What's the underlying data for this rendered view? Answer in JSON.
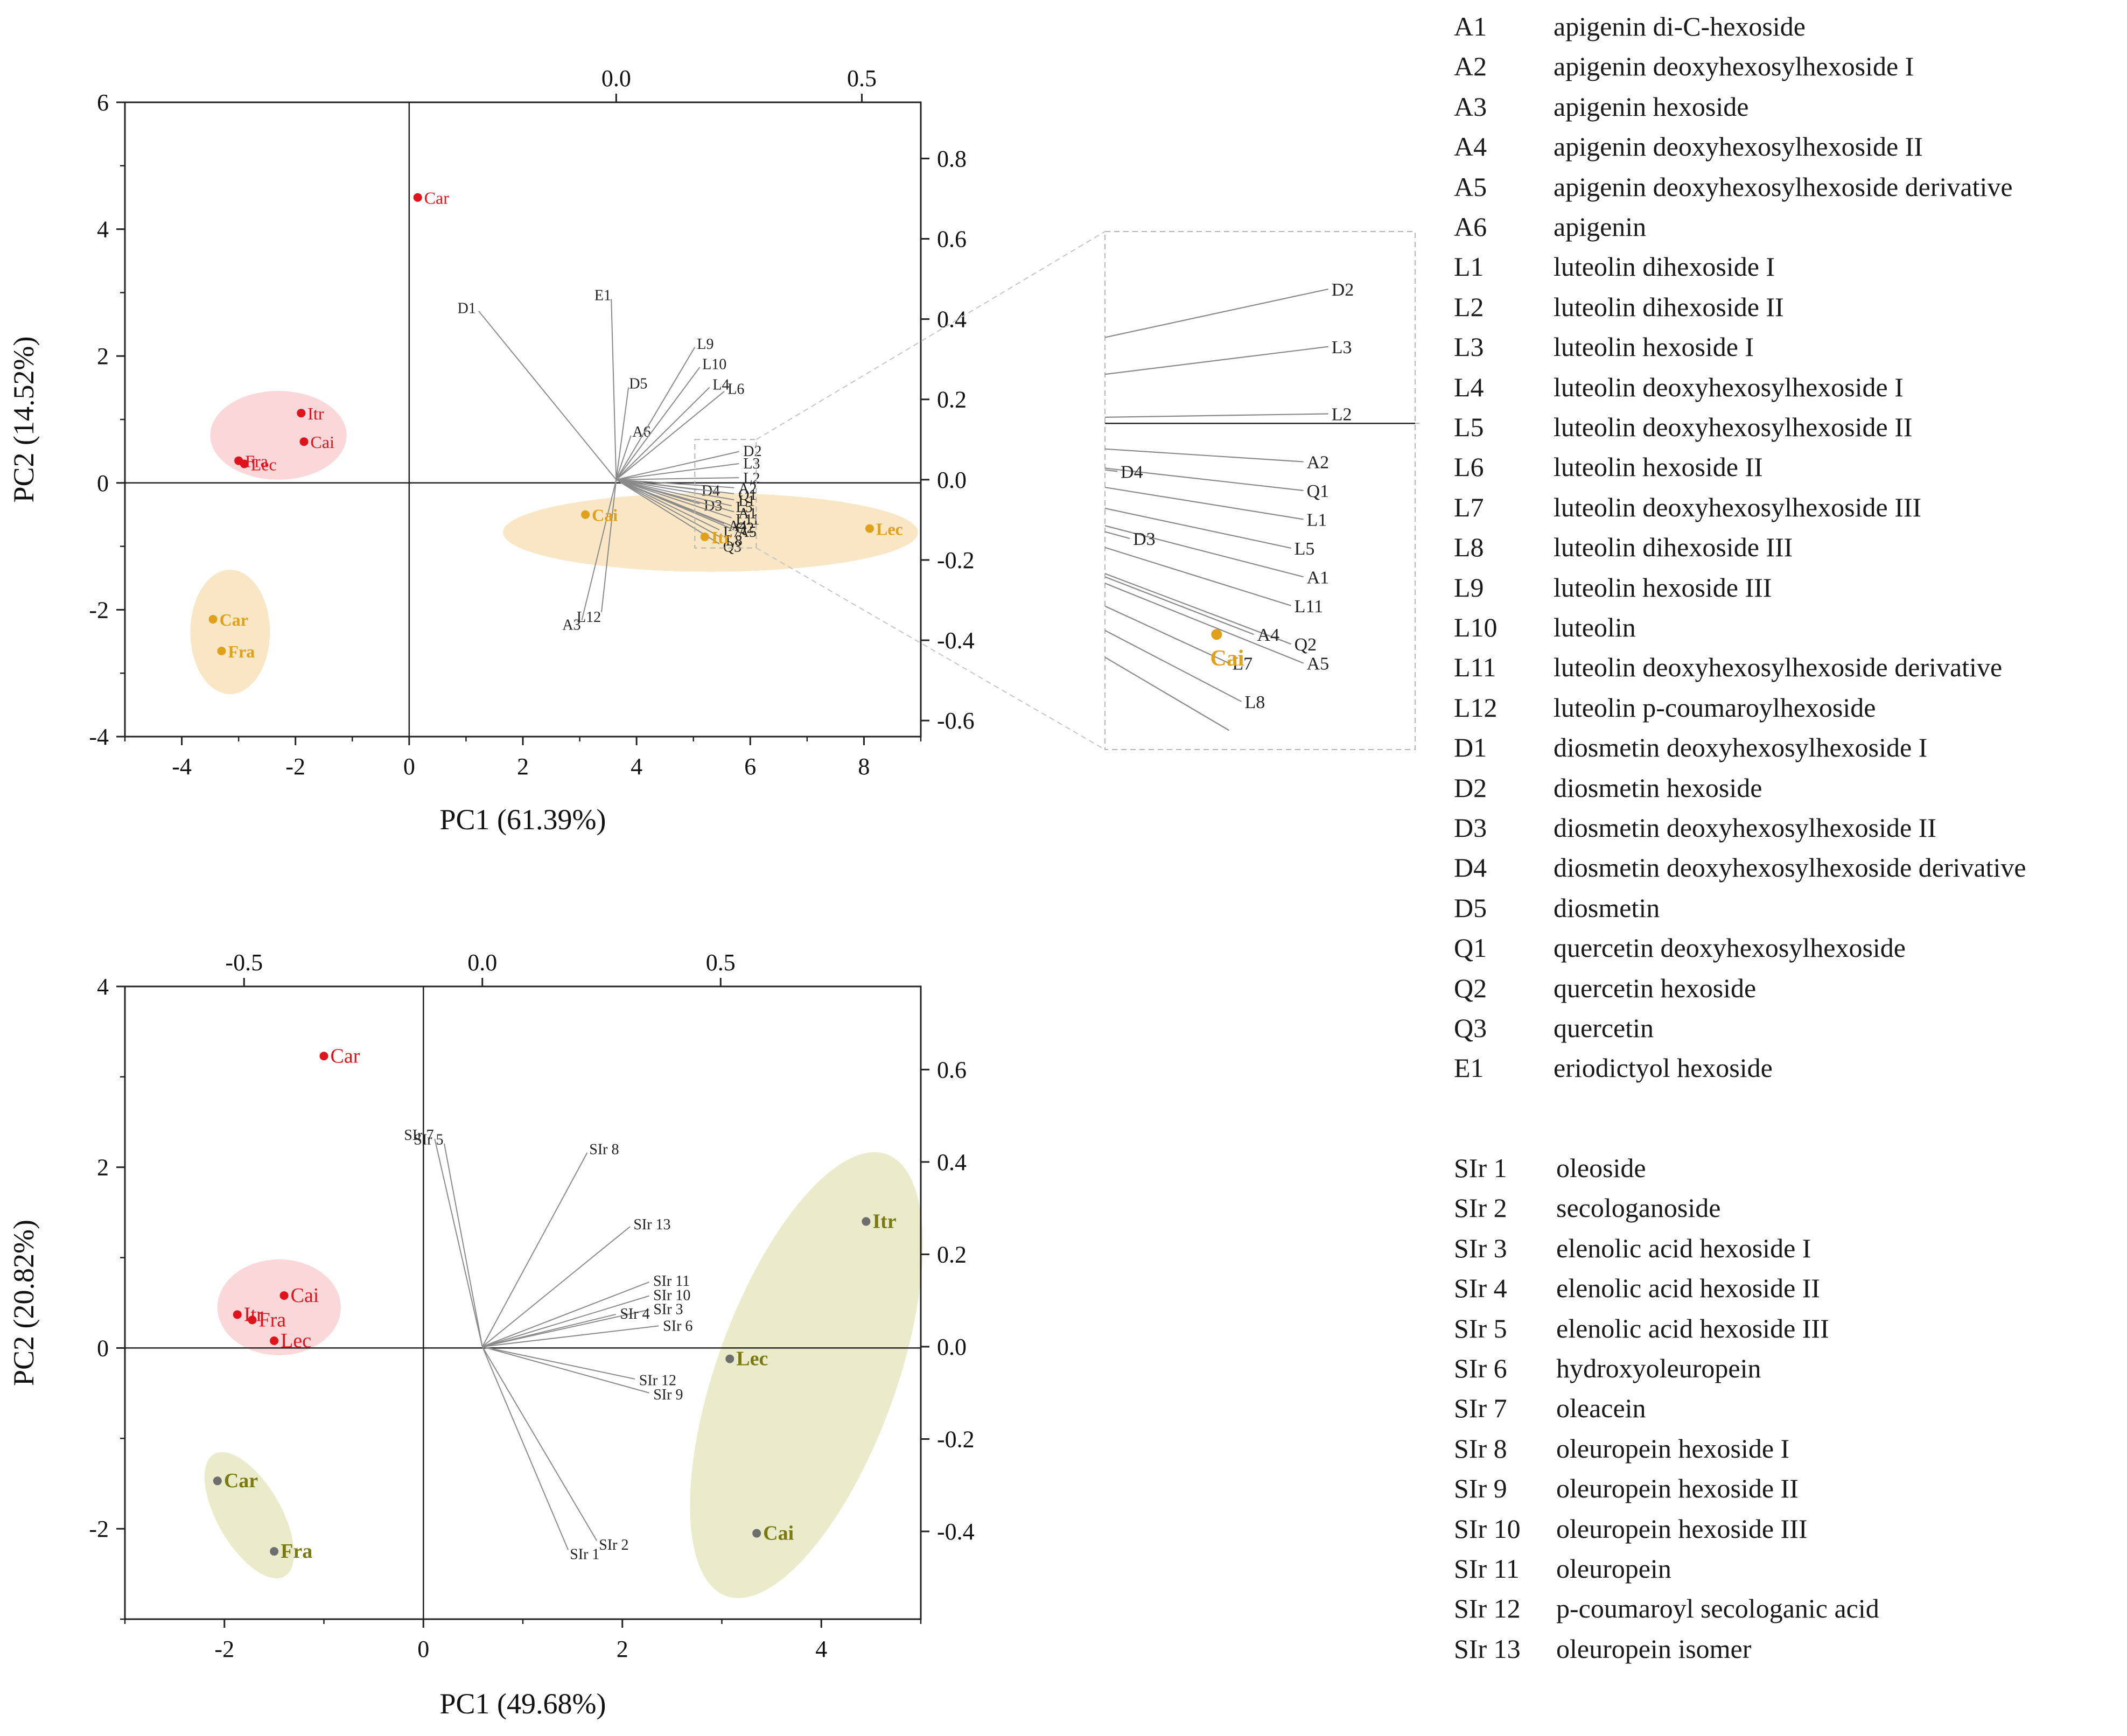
{
  "colors": {
    "red": "#e0121b",
    "orange": "#e0a01a",
    "olive": "#7a7a10",
    "gray_dot": "#6e6e6e",
    "red_ellipse": "#f8c9cc",
    "orange_ellipse": "#f7deb0",
    "olive_ellipse": "#e3e4b8",
    "loading_line": "#8a8a8a",
    "axis": "#222222"
  },
  "chart_data": [
    {
      "type": "scatter",
      "subtype": "biplot",
      "title": "",
      "xlabel": "PC1 (61.39%)",
      "ylabel": "PC2 (14.52%)",
      "xlim": [
        -5,
        9
      ],
      "ylim": [
        -4,
        6
      ],
      "x_ticks": [
        "-4",
        "-2",
        "0",
        "2",
        "4",
        "6",
        "8"
      ],
      "x_tick_values": [
        -4,
        -2,
        0,
        2,
        4,
        6,
        8
      ],
      "y_ticks": [
        "-4",
        "-2",
        "0",
        "2",
        "4",
        "6"
      ],
      "y_tick_values": [
        -4,
        -2,
        0,
        2,
        4,
        6
      ],
      "top_axis": {
        "lim": [
          -1,
          0.62
        ],
        "ticks": [
          "0.0",
          "0.5"
        ],
        "tick_values": [
          0,
          0.5
        ]
      },
      "right_axis": {
        "lim": [
          -0.64,
          0.94
        ],
        "ticks": [
          "0.8",
          "0.6",
          "0.4",
          "0.2",
          "0.0",
          "-0.2",
          "-0.4",
          "-0.6"
        ],
        "tick_values": [
          0.8,
          0.6,
          0.4,
          0.2,
          0,
          -0.2,
          -0.4,
          -0.6
        ]
      },
      "score_groups": [
        {
          "name": "red",
          "color": "red",
          "points": [
            {
              "label": "Car",
              "x": 0.15,
              "y": 4.5
            },
            {
              "label": "Itr",
              "x": -1.9,
              "y": 1.1
            },
            {
              "label": "Cai",
              "x": -1.85,
              "y": 0.65
            },
            {
              "label": "Fra",
              "x": -3.0,
              "y": 0.35
            },
            {
              "label": "Lec",
              "x": -2.9,
              "y": 0.3
            }
          ],
          "ellipses": [
            {
              "cx": -2.3,
              "cy": 0.75,
              "rx": 1.2,
              "ry": 0.7,
              "angle": 0
            }
          ]
        },
        {
          "name": "orange",
          "color": "orange",
          "points": [
            {
              "label": "Car",
              "x": -3.45,
              "y": -2.15
            },
            {
              "label": "Fra",
              "x": -3.3,
              "y": -2.65
            },
            {
              "label": "Cai",
              "x": 3.1,
              "y": -0.5
            },
            {
              "label": "Itr",
              "x": 5.2,
              "y": -0.85
            },
            {
              "label": "Lec",
              "x": 8.1,
              "y": -0.72
            }
          ],
          "ellipses": [
            {
              "cx": -3.15,
              "cy": -2.35,
              "rx": 0.7,
              "ry": 0.98,
              "angle": 0
            },
            {
              "cx": 5.3,
              "cy": -0.78,
              "rx": 3.65,
              "ry": 0.62,
              "angle": 0
            }
          ]
        }
      ],
      "loadings": [
        {
          "label": "D1",
          "x": -0.28,
          "y": 0.42
        },
        {
          "label": "E1",
          "x": -0.01,
          "y": 0.45
        },
        {
          "label": "D5",
          "x": 0.025,
          "y": 0.23
        },
        {
          "label": "A6",
          "x": 0.03,
          "y": 0.11
        },
        {
          "label": "L9",
          "x": 0.16,
          "y": 0.33
        },
        {
          "label": "L10",
          "x": 0.17,
          "y": 0.28
        },
        {
          "label": "L4",
          "x": 0.19,
          "y": 0.23
        },
        {
          "label": "L6",
          "x": 0.22,
          "y": 0.22
        },
        {
          "label": "D2",
          "x": 0.25,
          "y": 0.07
        },
        {
          "label": "L3",
          "x": 0.25,
          "y": 0.04
        },
        {
          "label": "L2",
          "x": 0.25,
          "y": 0.005
        },
        {
          "label": "A2",
          "x": 0.24,
          "y": -0.02
        },
        {
          "label": "D4",
          "x": 0.165,
          "y": -0.025
        },
        {
          "label": "D3",
          "x": 0.17,
          "y": -0.06
        },
        {
          "label": "Q1",
          "x": 0.24,
          "y": -0.035
        },
        {
          "label": "L1",
          "x": 0.24,
          "y": -0.05
        },
        {
          "label": "L5",
          "x": 0.235,
          "y": -0.065
        },
        {
          "label": "A1",
          "x": 0.24,
          "y": -0.08
        },
        {
          "label": "L11",
          "x": 0.235,
          "y": -0.095
        },
        {
          "label": "A4",
          "x": 0.22,
          "y": -0.11
        },
        {
          "label": "Q2",
          "x": 0.235,
          "y": -0.115
        },
        {
          "label": "A5",
          "x": 0.24,
          "y": -0.125
        },
        {
          "label": "L7",
          "x": 0.21,
          "y": -0.125
        },
        {
          "label": "L8",
          "x": 0.215,
          "y": -0.145
        },
        {
          "label": "Q3",
          "x": 0.21,
          "y": -0.16
        },
        {
          "label": "A3",
          "x": -0.07,
          "y": -0.35
        },
        {
          "label": "L12",
          "x": -0.03,
          "y": -0.33
        }
      ],
      "inset": {
        "xlim": [
          0.16,
          0.285
        ],
        "ylim": [
          -0.17,
          0.1
        ],
        "visible_loadings": [
          "D2",
          "L3",
          "L2",
          "A2",
          "D4",
          "D3",
          "Q1",
          "L1",
          "L5",
          "A1",
          "L11",
          "A4",
          "Q2",
          "A5",
          "L7",
          "L8"
        ],
        "visible_points": [
          {
            "label": "Cai",
            "x": 0.205,
            "y": -0.11,
            "color": "orange"
          }
        ]
      }
    },
    {
      "type": "scatter",
      "subtype": "biplot",
      "title": "",
      "xlabel": "PC1 (49.68%)",
      "ylabel": "PC2 (20.82%)",
      "xlim": [
        -3,
        5
      ],
      "ylim": [
        -3,
        4
      ],
      "x_ticks": [
        "-2",
        "0",
        "2",
        "4"
      ],
      "x_tick_values": [
        -2,
        0,
        2,
        4
      ],
      "y_ticks": [
        "-2",
        "0",
        "2",
        "4"
      ],
      "y_tick_values": [
        -2,
        0,
        2,
        4
      ],
      "top_axis": {
        "lim": [
          -0.75,
          0.92
        ],
        "ticks": [
          "-0.5",
          "0.0",
          "0.5"
        ],
        "tick_values": [
          -0.5,
          0,
          0.5
        ]
      },
      "right_axis": {
        "lim": [
          -0.59,
          0.78
        ],
        "ticks": [
          "0.6",
          "0.4",
          "0.2",
          "0.0",
          "-0.2",
          "-0.4"
        ],
        "tick_values": [
          0.6,
          0.4,
          0.2,
          0,
          -0.2,
          -0.4
        ]
      },
      "score_groups": [
        {
          "name": "red",
          "color": "red",
          "points": [
            {
              "label": "Car",
              "x": -1.0,
              "y": 3.23
            },
            {
              "label": "Itr",
              "x": -1.87,
              "y": 0.37
            },
            {
              "label": "Cai",
              "x": -1.4,
              "y": 0.58
            },
            {
              "label": "Fra",
              "x": -1.72,
              "y": 0.31
            },
            {
              "label": "Lec",
              "x": -1.5,
              "y": 0.08
            }
          ],
          "ellipses": [
            {
              "cx": -1.45,
              "cy": 0.45,
              "rx": 0.62,
              "ry": 0.53,
              "angle": 0
            }
          ]
        },
        {
          "name": "olive",
          "color": "olive",
          "points": [
            {
              "label": "Car",
              "x": -2.07,
              "y": -1.47
            },
            {
              "label": "Fra",
              "x": -1.5,
              "y": -2.25
            },
            {
              "label": "Itr",
              "x": 4.45,
              "y": 1.4
            },
            {
              "label": "Lec",
              "x": 3.08,
              "y": -0.12
            },
            {
              "label": "Cai",
              "x": 3.35,
              "y": -2.05
            }
          ],
          "ellipses": [
            {
              "cx": -1.75,
              "cy": -1.85,
              "rx": 0.32,
              "ry": 0.78,
              "angle": -30
            },
            {
              "cx": 3.85,
              "cy": -0.3,
              "rx": 0.9,
              "ry": 2.6,
              "angle": 20
            }
          ]
        }
      ],
      "loadings": [
        {
          "label": "SIr 1",
          "x": 0.18,
          "y": -0.44
        },
        {
          "label": "SIr 2",
          "x": 0.24,
          "y": -0.42
        },
        {
          "label": "SIr 3",
          "x": 0.35,
          "y": 0.08
        },
        {
          "label": "SIr 4",
          "x": 0.28,
          "y": 0.07
        },
        {
          "label": "SIr 5",
          "x": -0.08,
          "y": 0.44
        },
        {
          "label": "SIr 6",
          "x": 0.37,
          "y": 0.045
        },
        {
          "label": "SIr 7",
          "x": -0.1,
          "y": 0.45
        },
        {
          "label": "SIr 8",
          "x": 0.22,
          "y": 0.42
        },
        {
          "label": "SIr 9",
          "x": 0.35,
          "y": -0.1
        },
        {
          "label": "SIr 10",
          "x": 0.35,
          "y": 0.11
        },
        {
          "label": "SIr 11",
          "x": 0.35,
          "y": 0.14
        },
        {
          "label": "SIr 12",
          "x": 0.32,
          "y": -0.07
        },
        {
          "label": "SIr 13",
          "x": 0.31,
          "y": 0.26
        }
      ]
    }
  ],
  "legend_flavonoids": [
    {
      "code": "A1",
      "name": "apigenin di-C-hexoside"
    },
    {
      "code": "A2",
      "name": "apigenin deoxyhexosylhexoside I"
    },
    {
      "code": "A3",
      "name": "apigenin hexoside"
    },
    {
      "code": "A4",
      "name": "apigenin deoxyhexosylhexoside II"
    },
    {
      "code": "A5",
      "name": "apigenin deoxyhexosylhexoside derivative"
    },
    {
      "code": "A6",
      "name": "apigenin"
    },
    {
      "code": "L1",
      "name": "luteolin dihexoside I"
    },
    {
      "code": "L2",
      "name": "luteolin dihexoside II"
    },
    {
      "code": "L3",
      "name": "luteolin hexoside I"
    },
    {
      "code": "L4",
      "name": "luteolin deoxyhexosylhexoside I"
    },
    {
      "code": "L5",
      "name": "luteolin deoxyhexosylhexoside II"
    },
    {
      "code": "L6",
      "name": "luteolin hexoside II"
    },
    {
      "code": "L7",
      "name": "luteolin deoxyhexosylhexoside III"
    },
    {
      "code": "L8",
      "name": "luteolin dihexoside III"
    },
    {
      "code": "L9",
      "name": "luteolin hexoside III"
    },
    {
      "code": "L10",
      "name": "luteolin"
    },
    {
      "code": "L11",
      "name": "luteolin deoxyhexosylhexoside derivative"
    },
    {
      "code": "L12",
      "name": "luteolin p-coumaroylhexoside"
    },
    {
      "code": "D1",
      "name": "diosmetin deoxyhexosylhexoside I"
    },
    {
      "code": "D2",
      "name": "diosmetin hexoside"
    },
    {
      "code": "D3",
      "name": "diosmetin deoxyhexosylhexoside II"
    },
    {
      "code": "D4",
      "name": "diosmetin deoxyhexosylhexoside derivative"
    },
    {
      "code": "D5",
      "name": "diosmetin"
    },
    {
      "code": "Q1",
      "name": "quercetin deoxyhexosylhexoside"
    },
    {
      "code": "Q2",
      "name": "quercetin hexoside"
    },
    {
      "code": "Q3",
      "name": "quercetin"
    },
    {
      "code": "E1",
      "name": "eriodictyol hexoside"
    }
  ],
  "legend_secoiridoids": [
    {
      "code": "SIr 1",
      "name": "oleoside"
    },
    {
      "code": "SIr 2",
      "name": "secologanoside"
    },
    {
      "code": "SIr 3",
      "name": "elenolic acid hexoside I"
    },
    {
      "code": "SIr 4",
      "name": "elenolic acid hexoside II"
    },
    {
      "code": "SIr 5",
      "name": "elenolic acid hexoside III"
    },
    {
      "code": "SIr 6",
      "name": "hydroxyoleuropein"
    },
    {
      "code": "SIr 7",
      "name": "oleacein"
    },
    {
      "code": "SIr 8",
      "name": "oleuropein hexoside I"
    },
    {
      "code": "SIr 9",
      "name": "oleuropein hexoside II"
    },
    {
      "code": "SIr 10",
      "name": "oleuropein hexoside III"
    },
    {
      "code": "SIr 11",
      "name": "oleuropein"
    },
    {
      "code": "SIr 12",
      "name": "p-coumaroyl secologanic acid"
    },
    {
      "code": "SIr 13",
      "name": "oleuropein isomer"
    }
  ]
}
